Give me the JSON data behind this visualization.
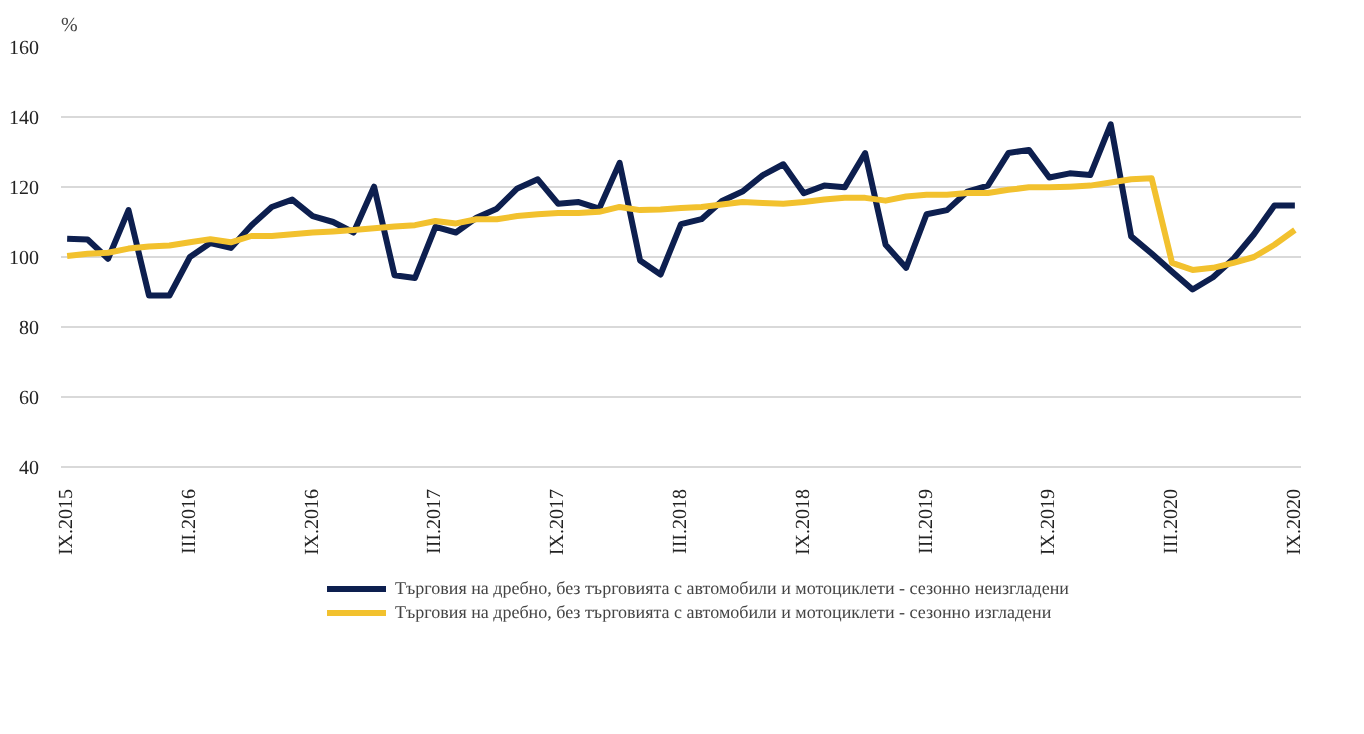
{
  "chart_data": {
    "type": "line",
    "ylabel": "%",
    "categories": [
      "IX.2015",
      null,
      null,
      null,
      null,
      null,
      "III.2016",
      null,
      null,
      null,
      null,
      null,
      "IX.2016",
      null,
      null,
      null,
      null,
      null,
      "III.2017",
      null,
      null,
      null,
      null,
      null,
      "IX.2017",
      null,
      null,
      null,
      null,
      null,
      "III.2018",
      null,
      null,
      null,
      null,
      null,
      "IX.2018",
      null,
      null,
      null,
      null,
      null,
      "III.2019",
      null,
      null,
      null,
      null,
      null,
      "IX.2019",
      null,
      null,
      null,
      null,
      null,
      "III.2020",
      null,
      null,
      null,
      null,
      null,
      "IX.2020"
    ],
    "ylim": [
      40,
      160
    ],
    "yticks": [
      40,
      60,
      80,
      100,
      120,
      140,
      160
    ],
    "grid": "y",
    "legend": "bottom",
    "marker": "none",
    "line_style": "solid",
    "series": [
      {
        "name": "Търговия на дребно, без търговията с автомобили и мотоциклети - сезонно неизгладени",
        "color": "#0d1f4f",
        "values": [
          105.2,
          105,
          99.5,
          113.4,
          89,
          89,
          100,
          104,
          102.6,
          109,
          114.3,
          116.4,
          111.7,
          110,
          107,
          120.1,
          94.8,
          94,
          108.6,
          107,
          111.2,
          113.8,
          119.6,
          122.2,
          115.2,
          115.7,
          113.8,
          126.9,
          99,
          95,
          109.4,
          110.8,
          116,
          118.7,
          123.4,
          126.5,
          118.2,
          120.4,
          119.9,
          129.7,
          103.5,
          96.9,
          112.2,
          113.4,
          118.7,
          120.4,
          129.7,
          130.6,
          122.7,
          123.9,
          123.4,
          137.9,
          105.9,
          101,
          95.8,
          90.7,
          94.2,
          99.5,
          106.5,
          114.7,
          114.7
        ]
      },
      {
        "name": "Търговия на дребно, без търговията с автомобили и мотоциклети - сезонно изгладени",
        "color": "#f2c12e",
        "values": [
          100.3,
          100.9,
          101.2,
          102.4,
          103,
          103.3,
          104.2,
          105.1,
          104.2,
          106,
          106,
          106.5,
          107,
          107.3,
          107.7,
          108.2,
          108.7,
          109.1,
          110.3,
          109.6,
          110.8,
          110.8,
          111.7,
          112.2,
          112.6,
          112.6,
          112.9,
          114.3,
          113.4,
          113.6,
          114,
          114.3,
          115,
          115.7,
          115.4,
          115.2,
          115.7,
          116.4,
          116.9,
          116.9,
          116.1,
          117.3,
          117.8,
          117.8,
          118.3,
          118.3,
          119.2,
          119.9,
          119.9,
          120.1,
          120.4,
          121.3,
          122.2,
          122.5,
          98.3,
          96.3,
          96.9,
          98.3,
          100,
          103.5,
          107.7
        ]
      }
    ]
  }
}
